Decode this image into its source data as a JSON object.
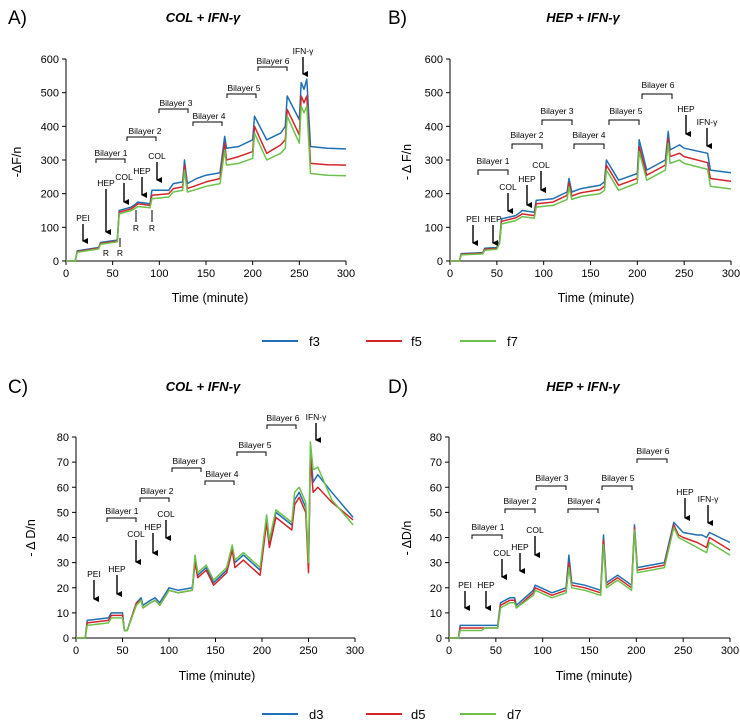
{
  "legend_top": [
    {
      "name": "f3",
      "color": "#1f6fb4"
    },
    {
      "name": "f5",
      "color": "#d3262b"
    },
    {
      "name": "f7",
      "color": "#6cc14a"
    }
  ],
  "legend_bottom": [
    {
      "name": "d3",
      "color": "#1f6fb4"
    },
    {
      "name": "d5",
      "color": "#d3262b"
    },
    {
      "name": "d7",
      "color": "#6cc14a"
    }
  ],
  "chart_data": [
    {
      "panel": "A)",
      "type": "line",
      "title": "COL + IFN-γ",
      "xlabel": "Time (minute)",
      "ylabel": "-ΔF/n",
      "xlim": [
        0,
        300
      ],
      "ylim": [
        0,
        600
      ],
      "xticks": [
        "0",
        "50",
        "100",
        "150",
        "200",
        "250",
        "300"
      ],
      "yticks": [
        "0",
        "100",
        "200",
        "300",
        "400",
        "500",
        "600"
      ],
      "x": [
        0,
        10,
        12,
        30,
        35,
        37,
        50,
        55,
        57,
        70,
        75,
        77,
        90,
        92,
        110,
        115,
        125,
        127,
        130,
        140,
        150,
        165,
        170,
        172,
        185,
        200,
        202,
        215,
        230,
        235,
        237,
        250,
        252,
        255,
        258,
        262,
        280,
        300
      ],
      "series": [
        {
          "name": "f3",
          "values": [
            0,
            0,
            30,
            38,
            40,
            55,
            60,
            62,
            150,
            160,
            170,
            175,
            170,
            210,
            210,
            230,
            235,
            300,
            230,
            245,
            255,
            262,
            370,
            335,
            340,
            360,
            430,
            360,
            380,
            400,
            490,
            420,
            530,
            510,
            540,
            340,
            335,
            333
          ]
        },
        {
          "name": "f5",
          "values": [
            0,
            0,
            28,
            36,
            38,
            52,
            57,
            59,
            145,
            155,
            165,
            170,
            165,
            195,
            200,
            215,
            220,
            285,
            215,
            225,
            235,
            245,
            350,
            300,
            310,
            325,
            400,
            320,
            345,
            360,
            450,
            375,
            490,
            470,
            490,
            290,
            286,
            285
          ]
        },
        {
          "name": "f7",
          "values": [
            0,
            0,
            26,
            34,
            36,
            50,
            55,
            57,
            140,
            150,
            158,
            162,
            158,
            185,
            190,
            205,
            210,
            270,
            205,
            213,
            222,
            230,
            330,
            285,
            290,
            305,
            380,
            300,
            320,
            335,
            430,
            350,
            460,
            440,
            460,
            260,
            255,
            253
          ]
        }
      ],
      "annotations": [
        "PEI",
        "HEP",
        "COL",
        "HEP",
        "COL",
        "R",
        "R",
        "R",
        "R",
        "IFN-γ"
      ],
      "brackets": [
        "Bilayer 1",
        "Bilayer 2",
        "Bilayer 3",
        "Bilayer 4",
        "Bilayer 5",
        "Bilayer 6"
      ]
    },
    {
      "panel": "B)",
      "type": "line",
      "title": "HEP + IFN-γ",
      "xlabel": "Time (minute)",
      "ylabel": "- Δ F/n",
      "xlim": [
        0,
        300
      ],
      "ylim": [
        0,
        600
      ],
      "xticks": [
        "0",
        "50",
        "100",
        "150",
        "200",
        "250",
        "300"
      ],
      "yticks": [
        "0",
        "100",
        "200",
        "300",
        "400",
        "500",
        "600"
      ],
      "x": [
        0,
        10,
        12,
        35,
        37,
        50,
        53,
        55,
        70,
        75,
        77,
        90,
        92,
        110,
        125,
        127,
        130,
        140,
        160,
        165,
        167,
        180,
        200,
        202,
        210,
        230,
        233,
        235,
        245,
        250,
        275,
        278,
        300
      ],
      "series": [
        {
          "name": "f3",
          "values": [
            0,
            0,
            22,
            25,
            38,
            40,
            60,
            125,
            135,
            145,
            150,
            145,
            180,
            185,
            205,
            245,
            205,
            215,
            225,
            235,
            300,
            240,
            260,
            360,
            270,
            300,
            385,
            330,
            345,
            335,
            320,
            270,
            262
          ]
        },
        {
          "name": "f5",
          "values": [
            0,
            0,
            20,
            23,
            35,
            37,
            55,
            118,
            128,
            136,
            140,
            135,
            170,
            175,
            195,
            232,
            193,
            203,
            212,
            222,
            285,
            225,
            245,
            340,
            255,
            285,
            365,
            310,
            320,
            310,
            292,
            245,
            237
          ]
        },
        {
          "name": "f7",
          "values": [
            0,
            0,
            18,
            21,
            32,
            35,
            52,
            110,
            120,
            128,
            132,
            127,
            160,
            165,
            183,
            220,
            183,
            192,
            200,
            210,
            270,
            210,
            232,
            325,
            240,
            270,
            350,
            290,
            300,
            290,
            272,
            222,
            214
          ]
        }
      ],
      "annotations": [
        "PEI",
        "HEP",
        "COL",
        "HEP",
        "COL",
        "HEP",
        "IFN-γ"
      ],
      "brackets": [
        "Bilayer 1",
        "Bilayer 2",
        "Bilayer 3",
        "Bilayer 4",
        "Bilayer 5",
        "Bilayer 6"
      ]
    },
    {
      "panel": "C)",
      "type": "line",
      "title": "COL + IFN-γ",
      "xlabel": "Time (minute)",
      "ylabel": "- Δ D/n",
      "xlim": [
        0,
        300
      ],
      "ylim": [
        0,
        80
      ],
      "xticks": [
        "0",
        "50",
        "100",
        "150",
        "200",
        "250",
        "300"
      ],
      "yticks": [
        "0",
        "10",
        "20",
        "30",
        "40",
        "50",
        "60",
        "70",
        "80"
      ],
      "x": [
        0,
        10,
        12,
        35,
        38,
        50,
        52,
        55,
        65,
        70,
        72,
        80,
        85,
        90,
        100,
        110,
        125,
        128,
        131,
        140,
        148,
        162,
        168,
        171,
        180,
        198,
        205,
        208,
        215,
        232,
        235,
        240,
        247,
        250,
        252,
        255,
        260,
        275,
        298
      ],
      "series": [
        {
          "name": "d3",
          "values": [
            0,
            0,
            7,
            8,
            10,
            10,
            3,
            3,
            14,
            16,
            13,
            15,
            16,
            14,
            20,
            19,
            20,
            31,
            25,
            28,
            22,
            27,
            36,
            30,
            33,
            27,
            48,
            38,
            50,
            45,
            55,
            58,
            52,
            28,
            75,
            62,
            65,
            58,
            48
          ]
        },
        {
          "name": "d5",
          "values": [
            0,
            0,
            6,
            7,
            9,
            9,
            3,
            3,
            14,
            15,
            12,
            14,
            15,
            13,
            19,
            18,
            19,
            30,
            24,
            27,
            21,
            26,
            35,
            28,
            31,
            25,
            46,
            36,
            48,
            43,
            53,
            56,
            50,
            26,
            72,
            58,
            60,
            54,
            47
          ]
        },
        {
          "name": "d7",
          "values": [
            0,
            0,
            5,
            6,
            8,
            8,
            3,
            3,
            13,
            15,
            12,
            14,
            15,
            13,
            19,
            18,
            19,
            33,
            26,
            29,
            23,
            28,
            37,
            31,
            34,
            28,
            49,
            39,
            51,
            46,
            58,
            60,
            54,
            30,
            78,
            67,
            68,
            55,
            45
          ]
        }
      ],
      "annotations": [
        "PEI",
        "HEP",
        "COL",
        "HEP",
        "COL",
        "IFN-γ"
      ],
      "brackets": [
        "Bilayer 1",
        "Bilayer 2",
        "Bilayer 3",
        "Bilayer 4",
        "Bilayer 5",
        "Bilayer 6"
      ]
    },
    {
      "panel": "D)",
      "type": "line",
      "title": "HEP + IFN-γ",
      "xlabel": "Time (minute)",
      "ylabel": "- ΔD/n",
      "xlim": [
        0,
        300
      ],
      "ylim": [
        0,
        80
      ],
      "xticks": [
        "0",
        "50",
        "100",
        "150",
        "200",
        "250",
        "300"
      ],
      "yticks": [
        "0",
        "10",
        "20",
        "30",
        "40",
        "50",
        "60",
        "70",
        "80"
      ],
      "x": [
        0,
        10,
        12,
        35,
        38,
        50,
        52,
        55,
        65,
        70,
        72,
        90,
        92,
        110,
        125,
        128,
        131,
        145,
        162,
        165,
        168,
        180,
        195,
        198,
        201,
        230,
        240,
        245,
        250,
        265,
        270,
        275,
        278,
        300
      ],
      "series": [
        {
          "name": "d3",
          "values": [
            0,
            0,
            5,
            5,
            5,
            5,
            5,
            14,
            16,
            16,
            13,
            19,
            21,
            18,
            20,
            33,
            22,
            21,
            19,
            41,
            22,
            25,
            21,
            45,
            28,
            30,
            46,
            44,
            42,
            41,
            41,
            40,
            42,
            38
          ]
        },
        {
          "name": "d5",
          "values": [
            0,
            0,
            4,
            4,
            4,
            4,
            4,
            13,
            15,
            15,
            12,
            18,
            20,
            17,
            19,
            30,
            21,
            20,
            18,
            39,
            21,
            24,
            20,
            44,
            27,
            29,
            45,
            41,
            40,
            38,
            37,
            36,
            40,
            35
          ]
        },
        {
          "name": "d7",
          "values": [
            0,
            0,
            3,
            3,
            4,
            4,
            4,
            12,
            14,
            14,
            12,
            17,
            19,
            16,
            18,
            28,
            20,
            19,
            17,
            37,
            20,
            23,
            19,
            43,
            26,
            28,
            44,
            40,
            39,
            36,
            35,
            34,
            38,
            33
          ]
        }
      ],
      "annotations": [
        "PEI",
        "HEP",
        "COL",
        "HEP",
        "COL",
        "HEP",
        "IFN-γ"
      ],
      "brackets": [
        "Bilayer 1",
        "Bilayer 2",
        "Bilayer 3",
        "Bilayer 4",
        "Bilayer 5",
        "Bilayer 6"
      ]
    }
  ]
}
